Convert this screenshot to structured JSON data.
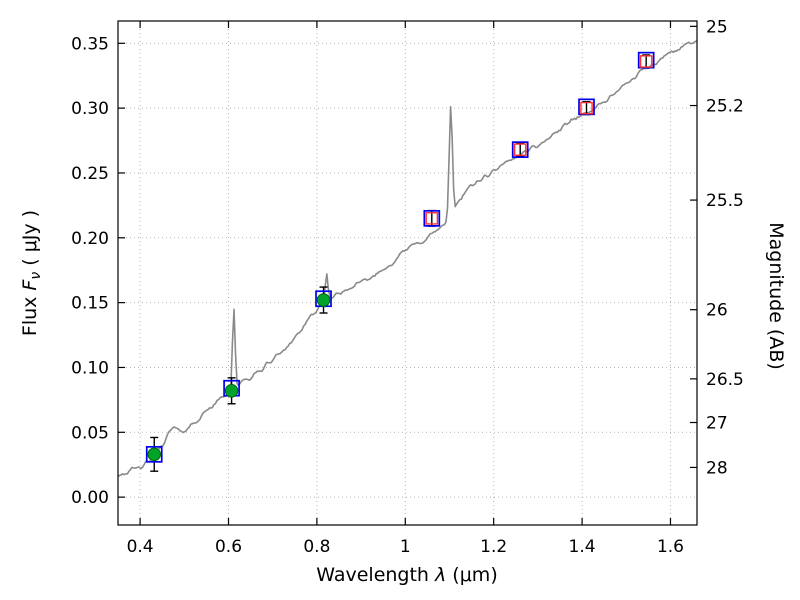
{
  "chart_data": {
    "type": "line",
    "title": "",
    "xlabel_parts": {
      "prefix": "Wavelength  ",
      "lambda": "λ",
      "suffix": " (μm)"
    },
    "ylabel_parts": {
      "prefix": "Flux  ",
      "f": "F",
      "nu": "ν",
      "suffix": "  ( μJy )"
    },
    "y2label": "Magnitude (AB)",
    "xlim": [
      0.35,
      1.66
    ],
    "ylim": [
      -0.0215,
      0.3672
    ],
    "mag_zeropoint": 23.9,
    "grid": true,
    "x_ticks": [
      {
        "value": 0.4,
        "label": "0.4"
      },
      {
        "value": 0.6,
        "label": "0.6"
      },
      {
        "value": 0.8,
        "label": "0.8"
      },
      {
        "value": 1.0,
        "label": "1"
      },
      {
        "value": 1.2,
        "label": "1.2"
      },
      {
        "value": 1.4,
        "label": "1.4"
      },
      {
        "value": 1.6,
        "label": "1.6"
      }
    ],
    "y_ticks": [
      {
        "value": 0.0,
        "label": "0.00"
      },
      {
        "value": 0.05,
        "label": "0.05"
      },
      {
        "value": 0.1,
        "label": "0.10"
      },
      {
        "value": 0.15,
        "label": "0.15"
      },
      {
        "value": 0.2,
        "label": "0.20"
      },
      {
        "value": 0.25,
        "label": "0.25"
      },
      {
        "value": 0.3,
        "label": "0.30"
      },
      {
        "value": 0.35,
        "label": "0.35"
      }
    ],
    "y2_ticks": [
      {
        "mag": 25,
        "label": "25"
      },
      {
        "mag": 25.2,
        "label": "25.2"
      },
      {
        "mag": 25.5,
        "label": "25.5"
      },
      {
        "mag": 26,
        "label": "26"
      },
      {
        "mag": 26.5,
        "label": "26.5"
      },
      {
        "mag": 27,
        "label": "27"
      },
      {
        "mag": 28,
        "label": "28"
      }
    ],
    "colors": {
      "spectrum": "#8a8a8a",
      "model_square": "#0000ee",
      "observed_circle_fill": "#00a327",
      "observed_circle_edge": "#006414",
      "observed_square": "#ff3030",
      "error_bar": "#000000",
      "grid": "#b5b5b5",
      "frame": "#000000"
    },
    "spectrum": {
      "noise_amplitude": 0.0028,
      "noise_seed": 42,
      "anchors": [
        [
          0.35,
          0.0175
        ],
        [
          0.365,
          0.019
        ],
        [
          0.38,
          0.0205
        ],
        [
          0.395,
          0.022
        ],
        [
          0.41,
          0.0245
        ],
        [
          0.42,
          0.027
        ],
        [
          0.43,
          0.0315
        ],
        [
          0.44,
          0.036
        ],
        [
          0.45,
          0.0405
        ],
        [
          0.46,
          0.046
        ],
        [
          0.475,
          0.054
        ],
        [
          0.49,
          0.05
        ],
        [
          0.51,
          0.0535
        ],
        [
          0.53,
          0.06
        ],
        [
          0.55,
          0.066
        ],
        [
          0.57,
          0.0725
        ],
        [
          0.59,
          0.078
        ],
        [
          0.605,
          0.0815
        ],
        [
          0.62,
          0.086
        ],
        [
          0.64,
          0.09
        ],
        [
          0.66,
          0.0945
        ],
        [
          0.68,
          0.1
        ],
        [
          0.7,
          0.106
        ],
        [
          0.72,
          0.1125
        ],
        [
          0.74,
          0.119
        ],
        [
          0.76,
          0.127
        ],
        [
          0.78,
          0.136
        ],
        [
          0.8,
          0.1445
        ],
        [
          0.815,
          0.15
        ],
        [
          0.83,
          0.154
        ],
        [
          0.85,
          0.157
        ],
        [
          0.87,
          0.16
        ],
        [
          0.89,
          0.1635
        ],
        [
          0.91,
          0.1665
        ],
        [
          0.93,
          0.171
        ],
        [
          0.95,
          0.1755
        ],
        [
          0.97,
          0.181
        ],
        [
          0.99,
          0.1875
        ],
        [
          1.01,
          0.1925
        ],
        [
          1.03,
          0.196
        ],
        [
          1.05,
          0.2
        ],
        [
          1.07,
          0.2055
        ],
        [
          1.09,
          0.21
        ],
        [
          1.105,
          0.216
        ],
        [
          1.12,
          0.2285
        ],
        [
          1.14,
          0.2375
        ],
        [
          1.16,
          0.2425
        ],
        [
          1.18,
          0.2465
        ],
        [
          1.2,
          0.2505
        ],
        [
          1.22,
          0.2555
        ],
        [
          1.24,
          0.26
        ],
        [
          1.26,
          0.2645
        ],
        [
          1.28,
          0.2685
        ],
        [
          1.3,
          0.2715
        ],
        [
          1.32,
          0.2755
        ],
        [
          1.34,
          0.281
        ],
        [
          1.36,
          0.2865
        ],
        [
          1.38,
          0.2915
        ],
        [
          1.4,
          0.295
        ],
        [
          1.42,
          0.298
        ],
        [
          1.44,
          0.3025
        ],
        [
          1.46,
          0.3075
        ],
        [
          1.48,
          0.3125
        ],
        [
          1.5,
          0.318
        ],
        [
          1.52,
          0.3245
        ],
        [
          1.54,
          0.33
        ],
        [
          1.56,
          0.3345
        ],
        [
          1.58,
          0.3385
        ],
        [
          1.6,
          0.343
        ],
        [
          1.62,
          0.346
        ],
        [
          1.64,
          0.349
        ],
        [
          1.66,
          0.351
        ]
      ],
      "emission_lines": [
        {
          "wavelength": 0.612,
          "peak_flux": 0.145,
          "sigma": 0.003
        },
        {
          "wavelength": 0.822,
          "peak_flux": 0.172,
          "sigma": 0.0028
        },
        {
          "wavelength": 1.103,
          "peak_flux": 0.3,
          "sigma": 0.0036
        }
      ]
    },
    "photometry": {
      "model_squares": [
        {
          "wavelength": 0.432,
          "flux": 0.033
        },
        {
          "wavelength": 0.607,
          "flux": 0.084
        },
        {
          "wavelength": 0.815,
          "flux": 0.153
        },
        {
          "wavelength": 1.06,
          "flux": 0.215
        },
        {
          "wavelength": 1.26,
          "flux": 0.268
        },
        {
          "wavelength": 1.41,
          "flux": 0.301
        },
        {
          "wavelength": 1.545,
          "flux": 0.337
        }
      ],
      "observed": [
        {
          "wavelength": 0.432,
          "flux": 0.033,
          "err": 0.013,
          "marker": "circle"
        },
        {
          "wavelength": 0.607,
          "flux": 0.082,
          "err": 0.01,
          "marker": "circle"
        },
        {
          "wavelength": 0.815,
          "flux": 0.152,
          "err": 0.01,
          "marker": "circle"
        },
        {
          "wavelength": 1.06,
          "flux": 0.215,
          "err": 0.006,
          "marker": "square"
        },
        {
          "wavelength": 1.26,
          "flux": 0.268,
          "err": 0.005,
          "marker": "square"
        },
        {
          "wavelength": 1.41,
          "flux": 0.3,
          "err": 0.005,
          "marker": "square"
        },
        {
          "wavelength": 1.545,
          "flux": 0.336,
          "err": 0.005,
          "marker": "square"
        }
      ]
    }
  }
}
